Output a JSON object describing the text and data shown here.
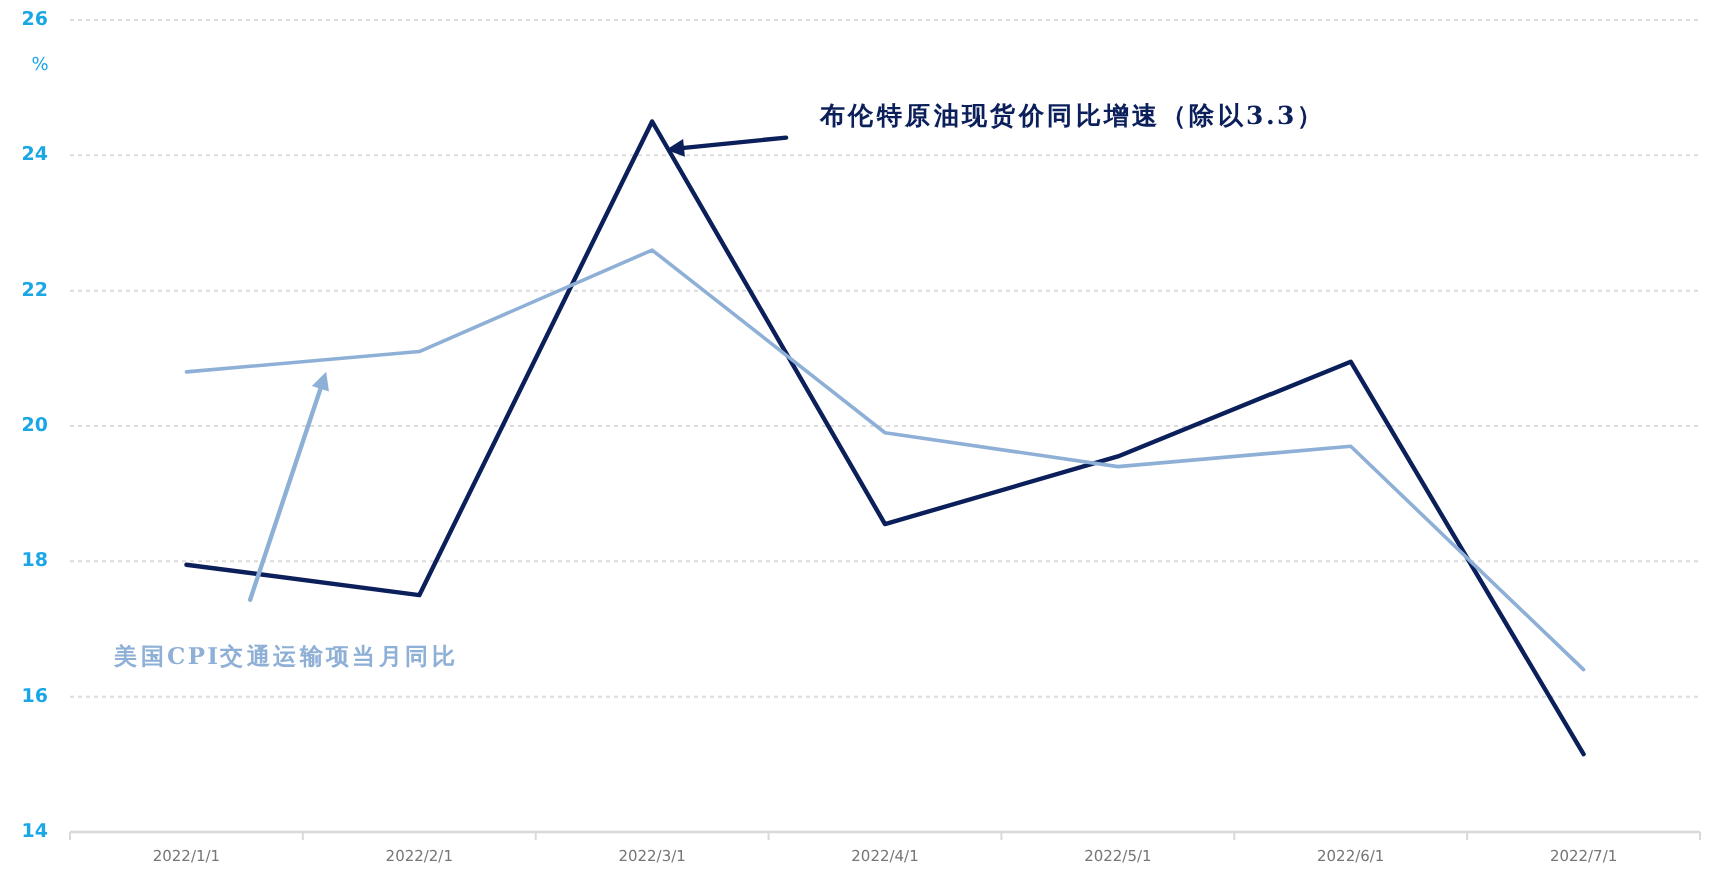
{
  "chart_data": {
    "type": "line",
    "ylabel": "%",
    "categories": [
      "2022/1/1",
      "2022/2/1",
      "2022/3/1",
      "2022/4/1",
      "2022/5/1",
      "2022/6/1",
      "2022/7/1"
    ],
    "series": [
      {
        "name": "布伦特原油现货价同比增速（除以3.3）",
        "color": "#0b1f5b",
        "values": [
          17.95,
          17.5,
          24.5,
          18.55,
          19.55,
          20.95,
          15.15
        ]
      },
      {
        "name": "美国CPI交通运输项当月同比",
        "color": "#8fb0d6",
        "values": [
          20.8,
          21.1,
          22.6,
          19.9,
          19.4,
          19.7,
          16.4
        ]
      }
    ],
    "ylim": [
      14,
      26
    ],
    "yticks": [
      14,
      16,
      18,
      20,
      22,
      24,
      26
    ],
    "grid": "y"
  }
}
